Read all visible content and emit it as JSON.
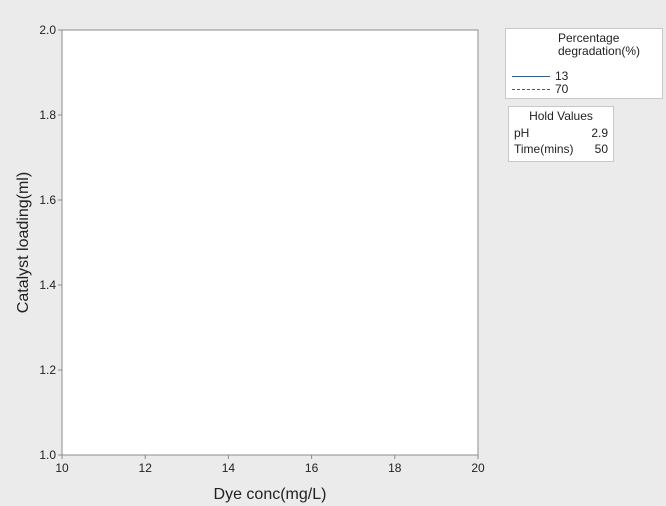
{
  "chart_data": {
    "type": "line",
    "title": "",
    "xlabel": "Dye conc(mg/L)",
    "ylabel": "Catalyst loading(ml)",
    "xlim": [
      10,
      20
    ],
    "ylim": [
      1.0,
      2.0
    ],
    "xticks": [
      "10",
      "12",
      "14",
      "16",
      "18",
      "20"
    ],
    "yticks": [
      "1.0",
      "1.2",
      "1.4",
      "1.6",
      "1.8",
      "2.0"
    ],
    "grid": false,
    "legend_placement": "right",
    "series": []
  },
  "legend": {
    "title_line1": "Percentage",
    "title_line2": "degradation(%)",
    "entries": [
      {
        "label": "13",
        "style": "solid",
        "color": "#2f5d86"
      },
      {
        "label": "70",
        "style": "dashed",
        "color": "#2f5d86"
      }
    ]
  },
  "hold_values": {
    "title": "Hold Values",
    "rows": [
      {
        "key": "pH",
        "value": "2.9"
      },
      {
        "key": "Time(mins)",
        "value": "50"
      }
    ]
  },
  "colors": {
    "background": "#ebebeb",
    "plot_area": "#ffffff",
    "axis": "#8c8c8c",
    "series": "#2f5d86"
  }
}
